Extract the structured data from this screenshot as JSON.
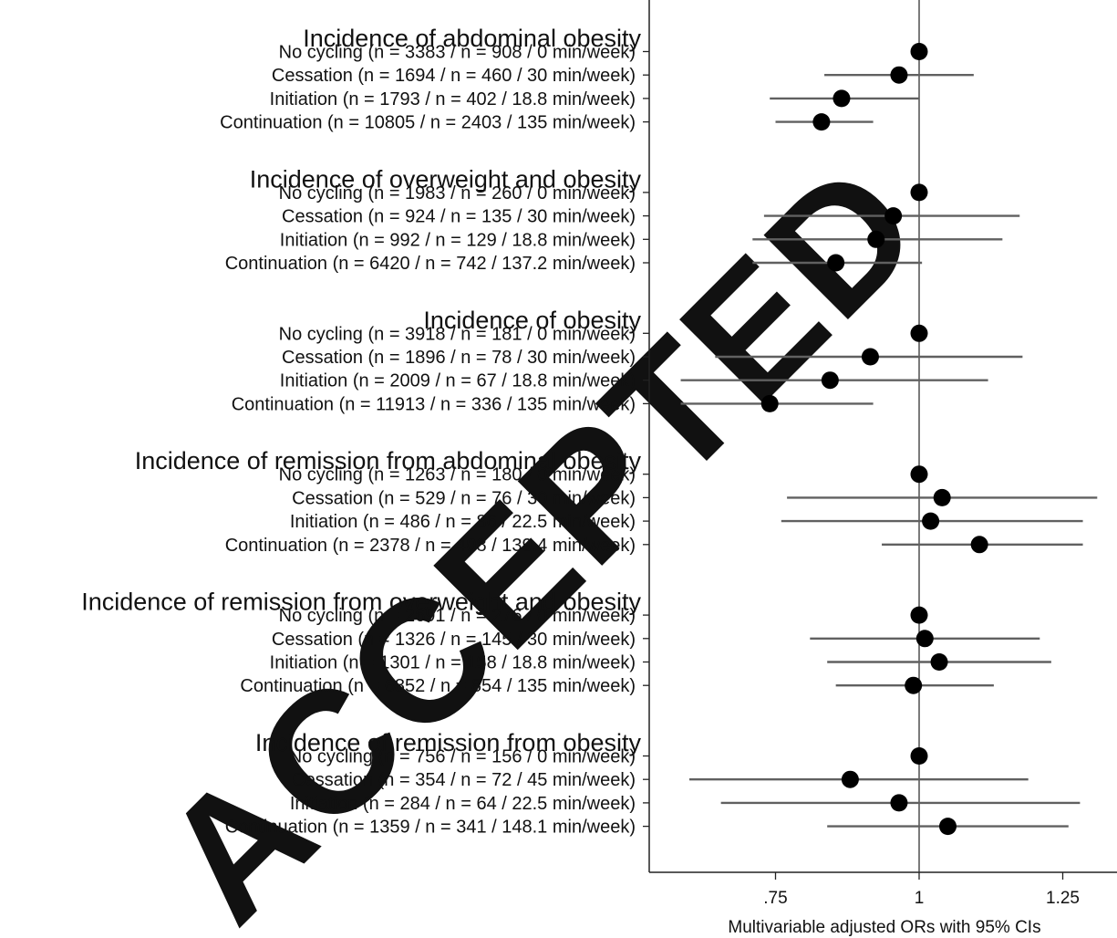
{
  "chart_data": {
    "type": "forest",
    "xlabel": "Multivariable adjusted ORs with 95% CIs",
    "xlim": [
      0.53,
      1.35
    ],
    "reference_line": 1,
    "x_ticks": [
      {
        "value": 0.75,
        "label": ".75"
      },
      {
        "value": 1,
        "label": "1"
      },
      {
        "value": 1.25,
        "label": "1.25"
      }
    ],
    "groups": [
      {
        "title": "Incidence of abdominal obesity",
        "rows": [
          {
            "label": "No cycling (n = 3383 / n = 908 / 0 min/week)",
            "or": 1.0,
            "lo": 1.0,
            "hi": 1.0
          },
          {
            "label": "Cessation (n = 1694 / n = 460 / 30 min/week)",
            "or": 0.965,
            "lo": 0.835,
            "hi": 1.095
          },
          {
            "label": "Initiation (n = 1793 / n = 402 / 18.8 min/week)",
            "or": 0.865,
            "lo": 0.74,
            "hi": 1.0
          },
          {
            "label": "Continuation (n = 10805 / n = 2403 / 135 min/week)",
            "or": 0.83,
            "lo": 0.75,
            "hi": 0.92
          }
        ]
      },
      {
        "title": "Incidence of overweight and obesity",
        "rows": [
          {
            "label": "No cycling (n = 1983 / n = 260 / 0 min/week)",
            "or": 1.0,
            "lo": 1.0,
            "hi": 1.0
          },
          {
            "label": "Cessation (n = 924 / n = 135 / 30 min/week)",
            "or": 0.955,
            "lo": 0.73,
            "hi": 1.175
          },
          {
            "label": "Initiation (n = 992 / n = 129 / 18.8 min/week)",
            "or": 0.925,
            "lo": 0.71,
            "hi": 1.145
          },
          {
            "label": "Continuation (n = 6420 / n = 742 / 137.2 min/week)",
            "or": 0.855,
            "lo": 0.71,
            "hi": 1.005
          }
        ]
      },
      {
        "title": "Incidence of obesity",
        "rows": [
          {
            "label": "No cycling (n = 3918 / n = 181 / 0 min/week)",
            "or": 1.0,
            "lo": 1.0,
            "hi": 1.0
          },
          {
            "label": "Cessation (n = 1896 / n = 78 / 30 min/week)",
            "or": 0.915,
            "lo": 0.645,
            "hi": 1.18
          },
          {
            "label": "Initiation (n = 2009 / n  = 67 / 18.8 min/week)",
            "or": 0.845,
            "lo": 0.585,
            "hi": 1.12
          },
          {
            "label": "Continuation (n  = 11913 / n  = 336 / 135 min/week)",
            "or": 0.74,
            "lo": 0.585,
            "hi": 0.92
          }
        ]
      },
      {
        "title": "Incidence of remission from abdominal obesity",
        "rows": [
          {
            "label": "No cycling (n = 1263 / n = 180 / 0 min/week)",
            "or": 1.0,
            "lo": 1.0,
            "hi": 1.0
          },
          {
            "label": "Cessation (n = 529 / n = 76 / 30 min/week)",
            "or": 1.04,
            "lo": 0.77,
            "hi": 1.31
          },
          {
            "label": "Initiation (n = 486 / n = 86 / 22.5 min/week)",
            "or": 1.02,
            "lo": 0.76,
            "hi": 1.285
          },
          {
            "label": "Continuation (n = 2378 / n = 408 / 139.4 min/week)",
            "or": 1.105,
            "lo": 0.935,
            "hi": 1.285
          }
        ]
      },
      {
        "title": "Incidence of remission from overweight and obesity",
        "rows": [
          {
            "label": "No cycling (n = 2691 / n = 276 / 0 min/week)",
            "or": 1.0,
            "lo": 1.0,
            "hi": 1.0
          },
          {
            "label": "Cessation (n = 1326 / n = 145 / 30 min/week)",
            "or": 1.01,
            "lo": 0.81,
            "hi": 1.21
          },
          {
            "label": "Initiation (n = 1301 / n = 158 / 18.8 min/week)",
            "or": 1.035,
            "lo": 0.84,
            "hi": 1.23
          },
          {
            "label": "Continuation (n = 6852 / n = 854 / 135 min/week)",
            "or": 0.99,
            "lo": 0.855,
            "hi": 1.13
          }
        ]
      },
      {
        "title": "Incidence of remission from obesity",
        "rows": [
          {
            "label": "No cycling (n = 756 / n = 156 / 0 min/week)",
            "or": 1.0,
            "lo": 1.0,
            "hi": 1.0
          },
          {
            "label": "Cessation (n = 354 / n = 72 / 45 min/week)",
            "or": 0.88,
            "lo": 0.6,
            "hi": 1.19
          },
          {
            "label": "Initiation (n = 284 / n = 64 / 22.5 min/week)",
            "or": 0.965,
            "lo": 0.655,
            "hi": 1.28
          },
          {
            "label": "Continuation (n = 1359 / n = 341 / 148.1 min/week)",
            "or": 1.05,
            "lo": 0.84,
            "hi": 1.26
          }
        ]
      }
    ]
  },
  "watermark": "ACCEPTED"
}
